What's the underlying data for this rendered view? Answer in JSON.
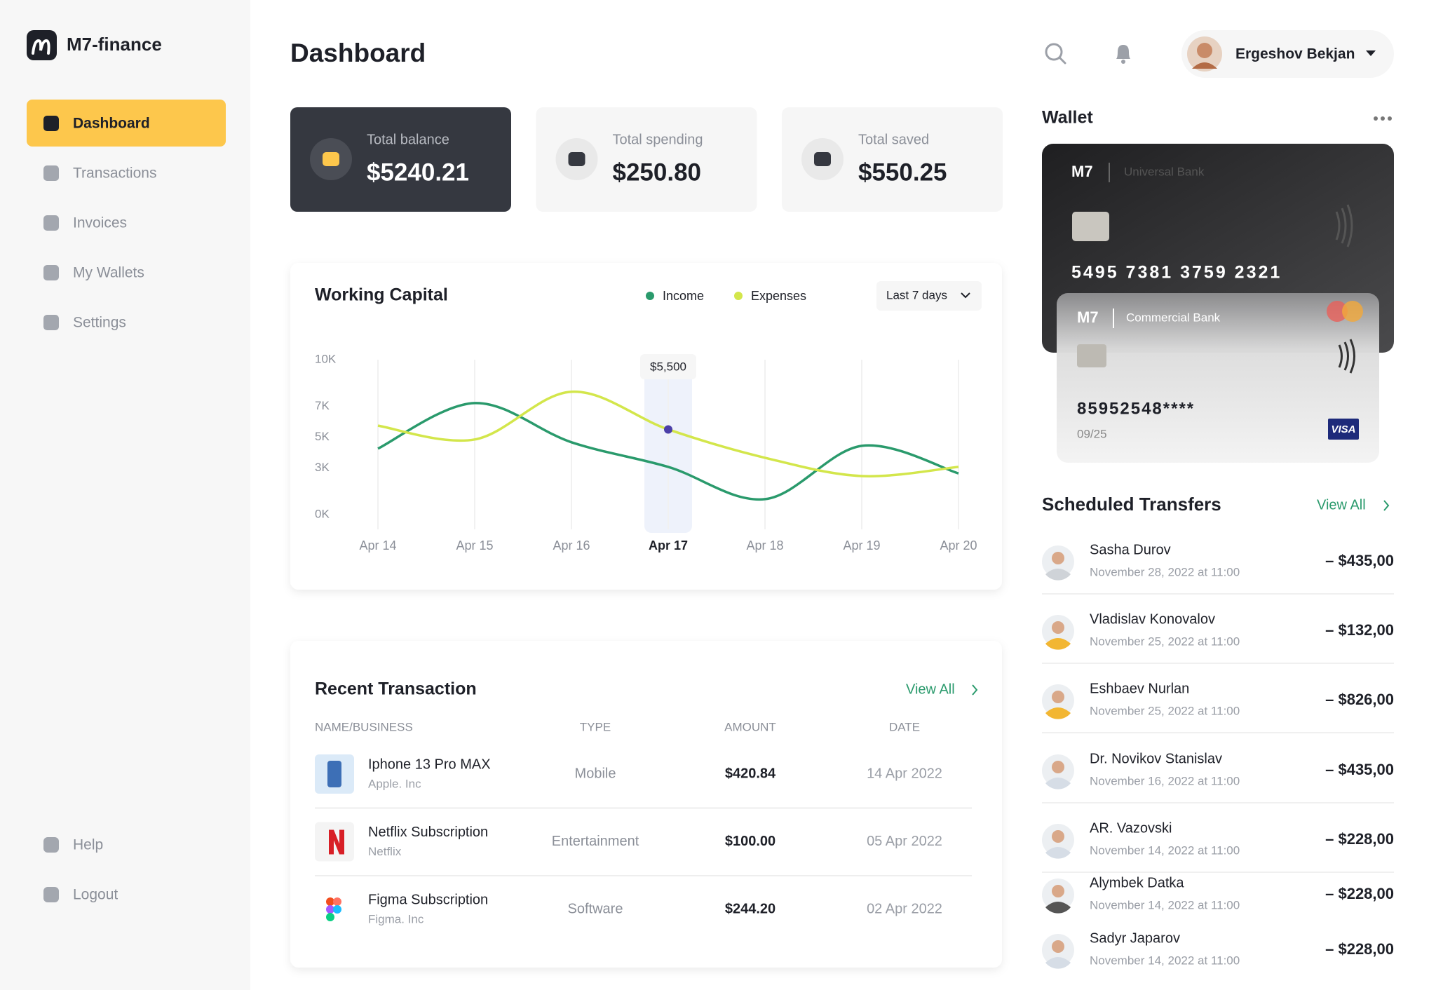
{
  "sidebar": {
    "brand": "M7-finance",
    "nav": [
      "Dashboard",
      "Transactions",
      "Invoices",
      "My Wallets",
      "Settings"
    ],
    "footer": [
      "Help",
      "Logout"
    ]
  },
  "header": {
    "title": "Dashboard",
    "user": "Ergeshov Bekjan"
  },
  "summary": [
    {
      "label": "Total balance",
      "value": "$5240.21"
    },
    {
      "label": "Total spending",
      "value": "$250.80"
    },
    {
      "label": "Total saved",
      "value": "$550.25"
    }
  ],
  "chart_data": {
    "type": "line",
    "title": "Working Capital",
    "range_selector": "Last 7 days",
    "categories": [
      "Apr 14",
      "Apr 15",
      "Apr 16",
      "Apr 17",
      "Apr 18",
      "Apr 19",
      "Apr 20"
    ],
    "series": [
      {
        "name": "Income",
        "color": "#2a9a6c",
        "values": [
          4260,
          7200,
          4670,
          3080,
          1000,
          4440,
          2660
        ]
      },
      {
        "name": "Expenses",
        "color": "#d3e64b",
        "values": [
          5740,
          4850,
          7930,
          5500,
          3670,
          2490,
          3080
        ],
        "value_labels": [
          null,
          null,
          null,
          "$5,500",
          null,
          null,
          null
        ]
      }
    ],
    "ylim": [
      0,
      10000
    ],
    "yticks": [
      {
        "value": 0,
        "label": "0K"
      },
      {
        "value": 3000,
        "label": "3K"
      },
      {
        "value": 5000,
        "label": "5K"
      },
      {
        "value": 7000,
        "label": "7K"
      },
      {
        "value": 10000,
        "label": "10K"
      }
    ]
  },
  "transactions": {
    "title": "Recent Transaction",
    "view_all": "View All",
    "columns": [
      "NAME/BUSINESS",
      "TYPE",
      "AMOUNT",
      "DATE"
    ],
    "rows": [
      {
        "name": "Iphone 13 Pro MAX",
        "business": "Apple. Inc",
        "type": "Mobile",
        "amount": "$420.84",
        "date": "14 Apr 2022"
      },
      {
        "name": "Netflix Subscription",
        "business": "Netflix",
        "type": "Entertainment",
        "amount": "$100.00",
        "date": "05 Apr 2022"
      },
      {
        "name": "Figma Subscription",
        "business": "Figma. Inc",
        "type": "Software",
        "amount": "$244.20",
        "date": "02 Apr 2022"
      }
    ]
  },
  "wallet": {
    "title": "Wallet",
    "cards": [
      {
        "brand": "M7",
        "bank": "Universal Bank",
        "number": "5495 7381 3759 2321"
      },
      {
        "brand": "M7",
        "bank": "Commercial Bank",
        "number": "85952548****",
        "expiry": "09/25",
        "network": "VISA"
      }
    ]
  },
  "transfers": {
    "title": "Scheduled Transfers",
    "view_all": "View All",
    "items": [
      {
        "name": "Sasha Durov",
        "date": "November 28, 2022 at 11:00",
        "amount": "– $435,00"
      },
      {
        "name": "Vladislav Konovalov",
        "date": "November 25, 2022 at 11:00",
        "amount": "– $132,00"
      },
      {
        "name": "Eshbaev Nurlan",
        "date": "November 25, 2022 at 11:00",
        "amount": "– $826,00"
      },
      {
        "name": "Dr. Novikov Stanislav",
        "date": "November 16, 2022 at 11:00",
        "amount": "– $435,00"
      },
      {
        "name": "AR. Vazovski",
        "date": "November 14, 2022 at 11:00",
        "amount": "– $228,00"
      },
      {
        "name": "Alymbek Datka",
        "date": "November 14, 2022 at 11:00",
        "amount": "– $228,00"
      },
      {
        "name": "Sadyr Japarov",
        "date": "November 14, 2022 at 11:00",
        "amount": "– $228,00"
      }
    ]
  }
}
